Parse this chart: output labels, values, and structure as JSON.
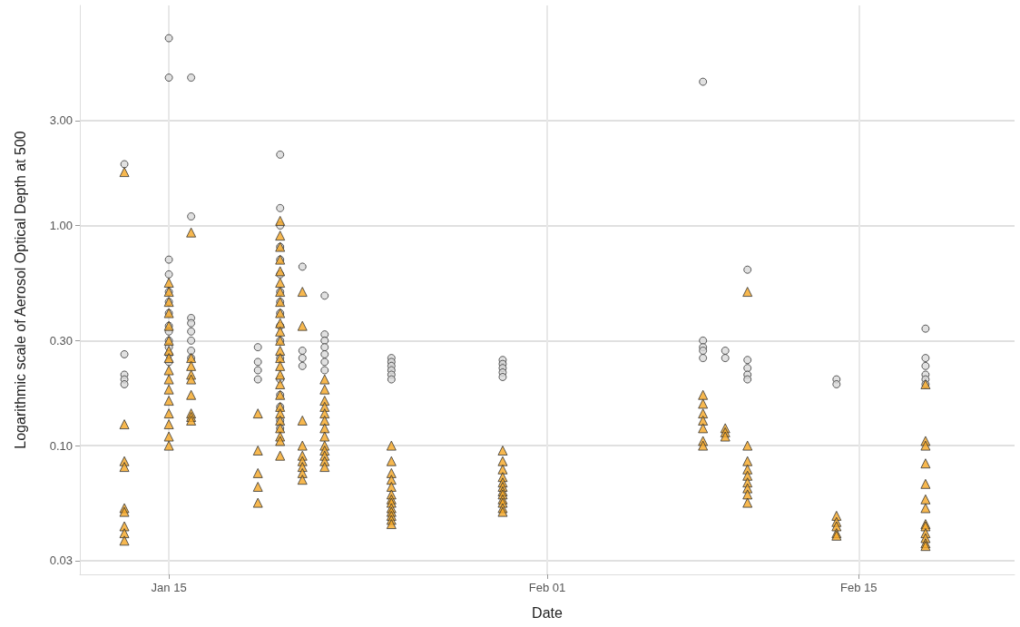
{
  "chart_data": {
    "type": "scatter",
    "xlabel": "Date",
    "ylabel": "Logarithmic scale of Aerosol Optical Depth at 500",
    "log": "y",
    "grid": true,
    "xlim": [
      "--01-11",
      "--02-22"
    ],
    "xticks": [
      {
        "value": "--01-15",
        "label": "Jan 15"
      },
      {
        "value": "--02-01",
        "label": "Feb 01"
      },
      {
        "value": "--02-15",
        "label": "Feb 15"
      }
    ],
    "ylim": [
      0.026,
      10
    ],
    "yticks": [
      0.03,
      {
        "value": 0.1,
        "label": "0.10"
      },
      {
        "value": 0.3,
        "label": "0.30"
      },
      {
        "value": 1,
        "label": "1.00"
      },
      {
        "value": 3,
        "label": "3.00"
      }
    ],
    "series": [
      {
        "color": "#d9d9d9",
        "marker": "circle",
        "x": [
          "--01-13",
          "--01-13",
          "--01-13",
          "--01-13",
          "--01-13",
          "--01-15",
          "--01-15",
          "--01-15",
          "--01-15",
          "--01-15",
          "--01-15",
          "--01-15",
          "--01-15",
          "--01-15",
          "--01-15",
          "--01-15",
          "--01-15",
          "--01-15",
          "--01-16",
          "--01-16",
          "--01-16",
          "--01-16",
          "--01-16",
          "--01-16",
          "--01-16",
          "--01-16",
          "--01-19",
          "--01-19",
          "--01-19",
          "--01-19",
          "--01-20",
          "--01-20",
          "--01-20",
          "--01-20",
          "--01-20",
          "--01-20",
          "--01-20",
          "--01-20",
          "--01-20",
          "--01-20",
          "--01-20",
          "--01-20",
          "--01-20",
          "--01-20",
          "--01-20",
          "--01-20",
          "--01-20",
          "--01-21",
          "--01-21",
          "--01-21",
          "--01-21",
          "--01-22",
          "--01-22",
          "--01-22",
          "--01-22",
          "--01-22",
          "--01-22",
          "--01-22",
          "--01-25",
          "--01-25",
          "--01-25",
          "--01-25",
          "--01-25",
          "--01-25",
          "--01-30",
          "--01-30",
          "--01-30",
          "--01-30",
          "--01-30",
          "--02-08",
          "--02-08",
          "--02-08",
          "--02-08",
          "--02-08",
          "--02-09",
          "--02-09",
          "--02-10",
          "--02-10",
          "--02-10",
          "--02-10",
          "--02-10",
          "--02-14",
          "--02-14",
          "--02-18",
          "--02-18",
          "--02-18",
          "--02-18",
          "--02-18",
          "--02-18"
        ],
        "values": [
          1.9,
          0.26,
          0.21,
          0.2,
          0.19,
          7.1,
          4.7,
          0.7,
          0.6,
          0.5,
          0.45,
          0.4,
          0.35,
          0.33,
          0.3,
          0.28,
          0.26,
          0.24,
          4.7,
          1.1,
          0.38,
          0.36,
          0.33,
          0.3,
          0.27,
          0.25,
          0.28,
          0.24,
          0.22,
          0.2,
          2.1,
          1.2,
          1.0,
          0.8,
          0.7,
          0.6,
          0.5,
          0.45,
          0.4,
          0.35,
          0.3,
          0.25,
          0.2,
          0.17,
          0.15,
          0.13,
          0.12,
          0.65,
          0.27,
          0.25,
          0.23,
          0.48,
          0.32,
          0.3,
          0.28,
          0.26,
          0.24,
          0.22,
          0.25,
          0.24,
          0.23,
          0.22,
          0.21,
          0.2,
          0.245,
          0.235,
          0.225,
          0.215,
          0.205,
          4.5,
          0.3,
          0.28,
          0.27,
          0.25,
          0.27,
          0.25,
          0.63,
          0.245,
          0.225,
          0.21,
          0.2,
          0.2,
          0.19,
          0.34,
          0.25,
          0.23,
          0.21,
          0.2,
          0.19
        ]
      },
      {
        "color": "#f5a623",
        "marker": "triangle",
        "x": [
          "--01-13",
          "--01-13",
          "--01-13",
          "--01-13",
          "--01-13",
          "--01-13",
          "--01-13",
          "--01-13",
          "--01-13",
          "--01-15",
          "--01-15",
          "--01-15",
          "--01-15",
          "--01-15",
          "--01-15",
          "--01-15",
          "--01-15",
          "--01-15",
          "--01-15",
          "--01-15",
          "--01-15",
          "--01-15",
          "--01-15",
          "--01-15",
          "--01-15",
          "--01-16",
          "--01-16",
          "--01-16",
          "--01-16",
          "--01-16",
          "--01-16",
          "--01-16",
          "--01-16",
          "--01-16",
          "--01-19",
          "--01-19",
          "--01-19",
          "--01-19",
          "--01-19",
          "--01-20",
          "--01-20",
          "--01-20",
          "--01-20",
          "--01-20",
          "--01-20",
          "--01-20",
          "--01-20",
          "--01-20",
          "--01-20",
          "--01-20",
          "--01-20",
          "--01-20",
          "--01-20",
          "--01-20",
          "--01-20",
          "--01-20",
          "--01-20",
          "--01-20",
          "--01-20",
          "--01-20",
          "--01-20",
          "--01-20",
          "--01-20",
          "--01-20",
          "--01-21",
          "--01-21",
          "--01-21",
          "--01-21",
          "--01-21",
          "--01-21",
          "--01-21",
          "--01-21",
          "--01-21",
          "--01-22",
          "--01-22",
          "--01-22",
          "--01-22",
          "--01-22",
          "--01-22",
          "--01-22",
          "--01-22",
          "--01-22",
          "--01-22",
          "--01-22",
          "--01-22",
          "--01-22",
          "--01-25",
          "--01-25",
          "--01-25",
          "--01-25",
          "--01-25",
          "--01-25",
          "--01-25",
          "--01-25",
          "--01-25",
          "--01-25",
          "--01-25",
          "--01-25",
          "--01-25",
          "--01-30",
          "--01-30",
          "--01-30",
          "--01-30",
          "--01-30",
          "--01-30",
          "--01-30",
          "--01-30",
          "--01-30",
          "--01-30",
          "--01-30",
          "--01-30",
          "--02-08",
          "--02-08",
          "--02-08",
          "--02-08",
          "--02-08",
          "--02-08",
          "--02-08",
          "--02-09",
          "--02-09",
          "--02-09",
          "--02-10",
          "--02-10",
          "--02-10",
          "--02-10",
          "--02-10",
          "--02-10",
          "--02-10",
          "--02-10",
          "--02-10",
          "--02-14",
          "--02-14",
          "--02-14",
          "--02-14",
          "--02-14",
          "--02-18",
          "--02-18",
          "--02-18",
          "--02-18",
          "--02-18",
          "--02-18",
          "--02-18",
          "--02-18",
          "--02-18",
          "--02-18",
          "--02-18",
          "--02-18",
          "--02-18"
        ],
        "values": [
          1.75,
          0.125,
          0.085,
          0.08,
          0.052,
          0.05,
          0.043,
          0.04,
          0.037,
          0.55,
          0.5,
          0.45,
          0.4,
          0.35,
          0.3,
          0.27,
          0.25,
          0.22,
          0.2,
          0.18,
          0.16,
          0.14,
          0.125,
          0.11,
          0.1,
          0.93,
          0.25,
          0.23,
          0.21,
          0.2,
          0.17,
          0.14,
          0.135,
          0.13,
          0.14,
          0.095,
          0.075,
          0.065,
          0.055,
          1.05,
          0.9,
          0.8,
          0.7,
          0.62,
          0.55,
          0.5,
          0.45,
          0.4,
          0.36,
          0.33,
          0.3,
          0.27,
          0.25,
          0.23,
          0.21,
          0.19,
          0.17,
          0.15,
          0.14,
          0.13,
          0.12,
          0.11,
          0.105,
          0.09,
          0.5,
          0.35,
          0.13,
          0.1,
          0.09,
          0.085,
          0.08,
          0.075,
          0.07,
          0.2,
          0.18,
          0.16,
          0.15,
          0.14,
          0.13,
          0.12,
          0.11,
          0.1,
          0.095,
          0.09,
          0.085,
          0.08,
          0.1,
          0.085,
          0.075,
          0.07,
          0.065,
          0.06,
          0.057,
          0.055,
          0.052,
          0.05,
          0.048,
          0.046,
          0.044,
          0.095,
          0.085,
          0.078,
          0.072,
          0.068,
          0.065,
          0.062,
          0.06,
          0.057,
          0.055,
          0.052,
          0.05,
          0.17,
          0.155,
          0.14,
          0.13,
          0.12,
          0.105,
          0.1,
          0.12,
          0.115,
          0.11,
          0.5,
          0.1,
          0.085,
          0.078,
          0.073,
          0.068,
          0.064,
          0.06,
          0.055,
          0.048,
          0.045,
          0.043,
          0.04,
          0.039,
          0.19,
          0.105,
          0.1,
          0.083,
          0.067,
          0.057,
          0.052,
          0.044,
          0.043,
          0.04,
          0.038,
          0.036,
          0.035
        ]
      }
    ]
  }
}
